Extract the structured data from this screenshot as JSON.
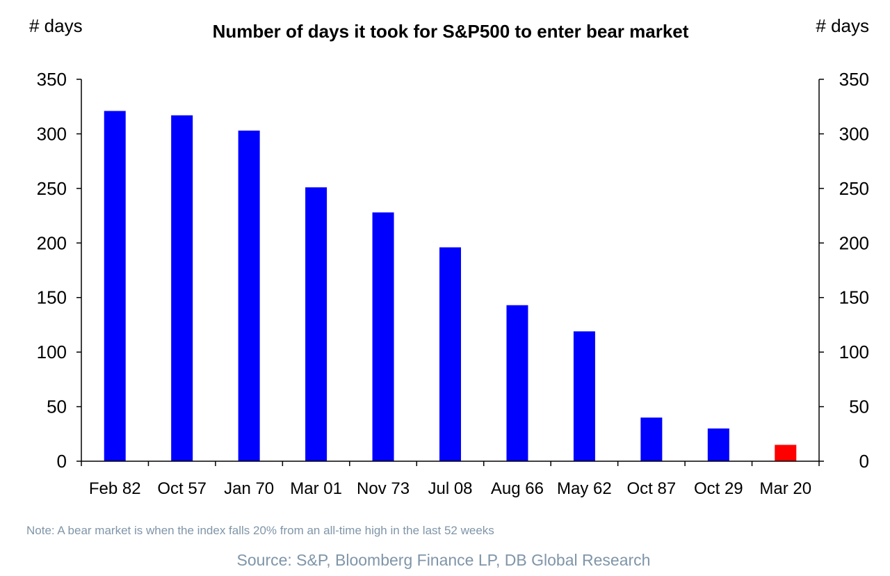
{
  "chart_data": {
    "type": "bar",
    "title": "Number of days it took for S&P500 to enter bear market",
    "ylabel_left": "# days",
    "ylabel_right": "# days",
    "xlabel": "",
    "ylim": [
      0,
      350
    ],
    "yticks": [
      0,
      50,
      100,
      150,
      200,
      250,
      300,
      350
    ],
    "grid": false,
    "categories": [
      "Feb 82",
      "Oct 57",
      "Jan 70",
      "Mar 01",
      "Nov 73",
      "Jul 08",
      "Aug 66",
      "May 62",
      "Oct 87",
      "Oct 29",
      "Mar 20"
    ],
    "values": [
      321,
      317,
      303,
      251,
      228,
      196,
      143,
      119,
      40,
      30,
      15
    ],
    "bar_colors": [
      "#0000ff",
      "#0000ff",
      "#0000ff",
      "#0000ff",
      "#0000ff",
      "#0000ff",
      "#0000ff",
      "#0000ff",
      "#0000ff",
      "#0000ff",
      "#ff0000"
    ],
    "note": "Note: A bear market is when the index falls 20% from an all-time high in the last 52 weeks",
    "source": "Source: S&P, Bloomberg Finance LP, DB Global Research"
  }
}
